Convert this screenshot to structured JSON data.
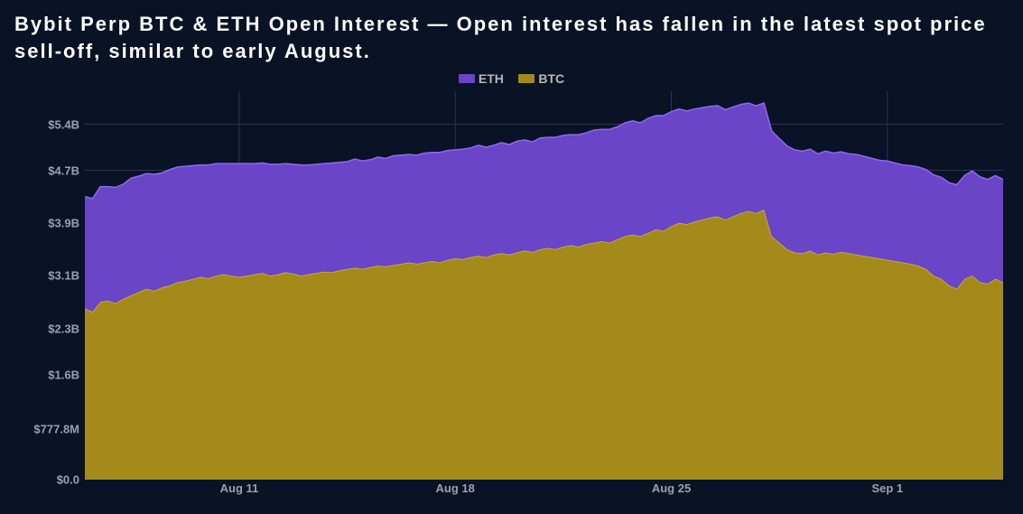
{
  "title": "Bybit Perp BTC & ETH Open Interest — Open interest has fallen in the latest spot price sell-off, similar to early August.",
  "legend": [
    {
      "label": "ETH",
      "color": "#6a45c8"
    },
    {
      "label": "BTC",
      "color": "#a48a1a"
    }
  ],
  "chart": {
    "type": "stacked-area",
    "background_color": "#0a1225",
    "grid_color": "#2a3555",
    "axis_text_color": "#9aa0ae",
    "series_colors": {
      "btc": "#a48a1a",
      "eth": "#6a45c8"
    },
    "series_stroke": {
      "btc": "#d4b634",
      "eth": "#8d6af0"
    },
    "y_axis": {
      "min": 0,
      "max": 5900,
      "ticks": [
        {
          "v": 0,
          "label": "$0.0"
        },
        {
          "v": 777.8,
          "label": "$777.8M"
        },
        {
          "v": 1600,
          "label": "$1.6B"
        },
        {
          "v": 2300,
          "label": "$2.3B"
        },
        {
          "v": 3100,
          "label": "$3.1B"
        },
        {
          "v": 3900,
          "label": "$3.9B"
        },
        {
          "v": 4700,
          "label": "$4.7B"
        },
        {
          "v": 5400,
          "label": "$5.4B"
        }
      ]
    },
    "x_axis": {
      "ticks": [
        {
          "i": 20,
          "label": "Aug 11"
        },
        {
          "i": 48,
          "label": "Aug 18"
        },
        {
          "i": 76,
          "label": "Aug 25"
        },
        {
          "i": 104,
          "label": "Sep 1"
        }
      ],
      "count": 120
    },
    "btc": [
      2600,
      2550,
      2700,
      2720,
      2680,
      2750,
      2800,
      2850,
      2900,
      2870,
      2920,
      2950,
      3000,
      3020,
      3050,
      3080,
      3060,
      3100,
      3120,
      3100,
      3080,
      3100,
      3120,
      3140,
      3100,
      3120,
      3150,
      3130,
      3100,
      3120,
      3140,
      3160,
      3150,
      3180,
      3200,
      3220,
      3200,
      3230,
      3250,
      3240,
      3260,
      3280,
      3300,
      3280,
      3300,
      3320,
      3300,
      3340,
      3360,
      3350,
      3380,
      3400,
      3380,
      3420,
      3440,
      3420,
      3450,
      3480,
      3460,
      3500,
      3520,
      3500,
      3540,
      3560,
      3540,
      3580,
      3600,
      3620,
      3600,
      3650,
      3700,
      3720,
      3700,
      3750,
      3800,
      3780,
      3850,
      3900,
      3880,
      3920,
      3950,
      3980,
      4000,
      3950,
      4000,
      4050,
      4080,
      4050,
      4100,
      3700,
      3600,
      3500,
      3450,
      3440,
      3480,
      3420,
      3450,
      3430,
      3460,
      3440,
      3420,
      3400,
      3380,
      3360,
      3340,
      3320,
      3300,
      3280,
      3250,
      3200,
      3100,
      3050,
      2950,
      2900,
      3050,
      3100,
      3000,
      2980,
      3050,
      3000
    ],
    "eth": [
      1700,
      1720,
      1750,
      1730,
      1760,
      1740,
      1780,
      1760,
      1750,
      1770,
      1740,
      1760,
      1750,
      1740,
      1720,
      1700,
      1720,
      1700,
      1680,
      1700,
      1720,
      1700,
      1680,
      1670,
      1690,
      1670,
      1650,
      1660,
      1680,
      1660,
      1650,
      1640,
      1660,
      1640,
      1630,
      1650,
      1640,
      1630,
      1650,
      1640,
      1660,
      1650,
      1640,
      1650,
      1660,
      1650,
      1670,
      1660,
      1650,
      1670,
      1660,
      1680,
      1670,
      1660,
      1680,
      1670,
      1690,
      1680,
      1670,
      1690,
      1680,
      1700,
      1690,
      1680,
      1700,
      1690,
      1710,
      1700,
      1720,
      1710,
      1720,
      1730,
      1720,
      1740,
      1730,
      1750,
      1740,
      1730,
      1720,
      1710,
      1700,
      1690,
      1680,
      1670,
      1660,
      1650,
      1640,
      1630,
      1620,
      1600,
      1580,
      1570,
      1560,
      1550,
      1540,
      1530,
      1540,
      1530,
      1520,
      1510,
      1520,
      1510,
      1500,
      1490,
      1500,
      1490,
      1480,
      1490,
      1500,
      1510,
      1530,
      1540,
      1560,
      1580,
      1570,
      1590,
      1600,
      1580,
      1570,
      1560
    ]
  }
}
